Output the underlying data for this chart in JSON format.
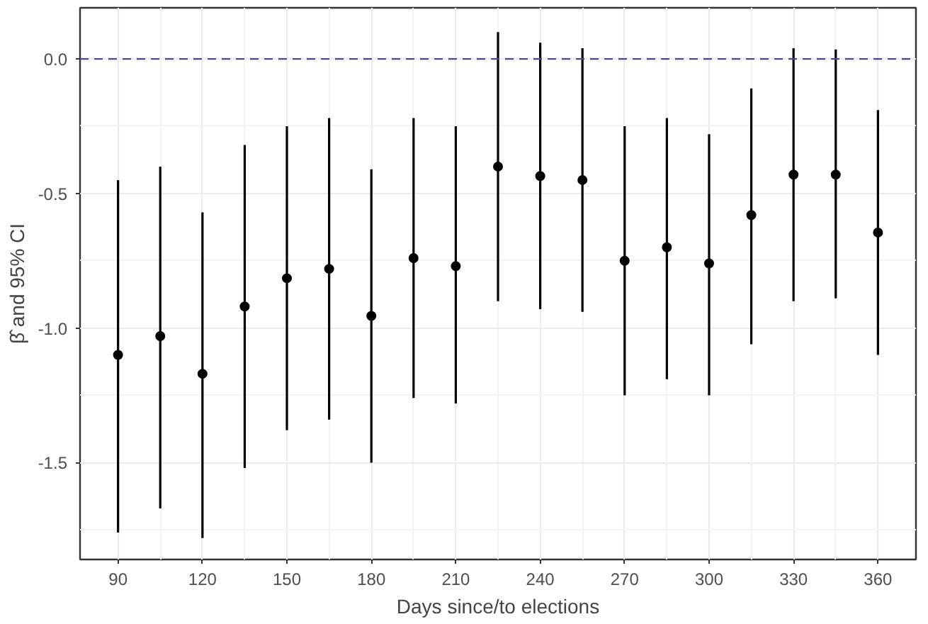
{
  "chart_data": {
    "type": "scatter",
    "xlabel": "Days since/to elections",
    "ylabel": "β̂ and 95% CI",
    "x": [
      90,
      105,
      120,
      135,
      150,
      165,
      180,
      195,
      210,
      225,
      240,
      255,
      270,
      285,
      300,
      315,
      330,
      345,
      360
    ],
    "series": [
      {
        "color": "#000000",
        "values": [
          -1.1,
          -1.03,
          -1.17,
          -0.92,
          -0.815,
          -0.78,
          -0.955,
          -0.74,
          -0.77,
          -0.4,
          -0.435,
          -0.45,
          -0.75,
          -0.7,
          -0.76,
          -0.58,
          -0.43,
          -0.43,
          -0.645
        ],
        "errors": [
          [
            -1.76,
            -0.45
          ],
          [
            -1.67,
            -0.4
          ],
          [
            -1.78,
            -0.57
          ],
          [
            -1.52,
            -0.32
          ],
          [
            -1.38,
            -0.25
          ],
          [
            -1.34,
            -0.22
          ],
          [
            -1.5,
            -0.41
          ],
          [
            -1.26,
            -0.22
          ],
          [
            -1.28,
            -0.25
          ],
          [
            -0.9,
            0.1
          ],
          [
            -0.93,
            0.06
          ],
          [
            -0.94,
            0.04
          ],
          [
            -1.25,
            -0.25
          ],
          [
            -1.19,
            -0.22
          ],
          [
            -1.25,
            -0.28
          ],
          [
            -1.06,
            -0.11
          ],
          [
            -0.9,
            0.04
          ],
          [
            -0.89,
            0.035
          ],
          [
            -1.1,
            -0.19
          ]
        ]
      }
    ],
    "xlim": [
      76.5,
      373.5
    ],
    "ylim": [
      -1.86,
      0.19
    ],
    "xticks": [
      90,
      120,
      150,
      180,
      210,
      240,
      270,
      300,
      330,
      360
    ],
    "yticks": [
      {
        "value": -1.5,
        "label": "-1.5"
      },
      {
        "value": -1.0,
        "label": "-1.0"
      },
      {
        "value": -0.5,
        "label": "-0.5"
      },
      {
        "value": 0,
        "label": "0.0"
      }
    ],
    "ref_lines": [
      {
        "axis": "y",
        "value": 0,
        "color": "#4a4a8c",
        "line_style": "dashed"
      }
    ],
    "grid": true,
    "marker": "circle"
  }
}
